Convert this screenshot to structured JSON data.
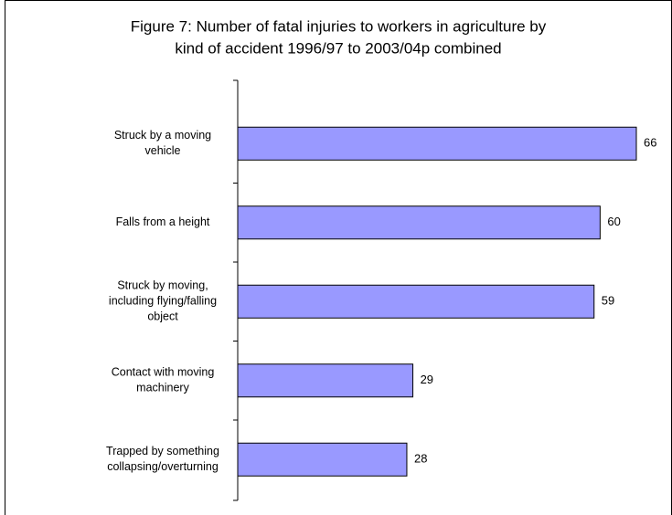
{
  "chart_data": {
    "type": "bar",
    "orientation": "horizontal",
    "title": [
      "Figure 7:  Number of fatal injuries to workers in agriculture by",
      "kind of accident 1996/97 to 2003/04p combined"
    ],
    "categories": [
      [
        "Struck by a moving",
        "vehicle"
      ],
      [
        "Falls from a height"
      ],
      [
        "Struck by moving,",
        "including flying/falling",
        "object"
      ],
      [
        "Contact with moving",
        "machinery"
      ],
      [
        "Trapped by something",
        "collapsing/overturning"
      ]
    ],
    "values": [
      66,
      60,
      59,
      29,
      28
    ],
    "color": "#9999ff"
  }
}
